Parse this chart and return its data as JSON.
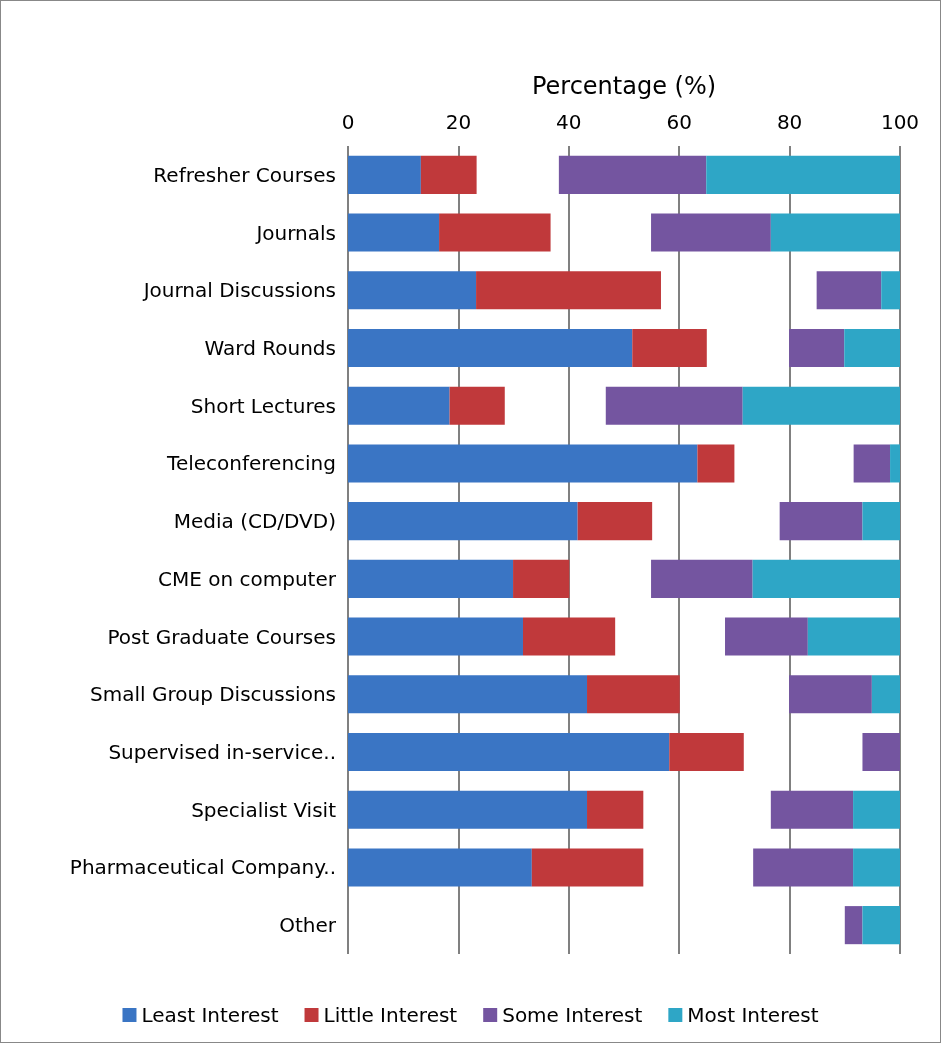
{
  "chart_data": {
    "type": "bar",
    "orientation": "horizontal",
    "xlabel": "Percentage (%)",
    "categories": [
      "Refresher Courses",
      "Journals",
      "Journal Discussions",
      "Ward Rounds",
      "Short Lectures",
      "Teleconferencing",
      "Media (CD/DVD)",
      "CME on computer",
      "Post Graduate Courses",
      "Small Group Discussions",
      "Supervised in-service..",
      "Specialist Visit",
      "Pharmaceutical Company..",
      "Other"
    ],
    "series": [
      {
        "name": "Least Interest",
        "color": "#3a75c4",
        "values": [
          13.2,
          16.5,
          23.2,
          51.5,
          18.4,
          63.3,
          41.6,
          29.9,
          31.7,
          43.3,
          58.2,
          43.3,
          33.3,
          null
        ],
        "base": [
          0,
          0,
          0,
          0,
          0,
          0,
          0,
          0,
          0,
          0,
          0,
          0,
          0,
          null
        ]
      },
      {
        "name": "Little Interest",
        "color": "#c0393b",
        "values": [
          10.1,
          20.2,
          33.5,
          13.5,
          10,
          6.7,
          13.5,
          10.2,
          16.7,
          16.8,
          13.5,
          10.2,
          20.2,
          null
        ],
        "base": [
          13.2,
          16.5,
          23.2,
          51.5,
          18.4,
          63.3,
          41.6,
          29.9,
          31.7,
          43.3,
          58.2,
          43.3,
          33.3,
          null
        ]
      },
      {
        "name": "Some Interest",
        "color": "#7455a0",
        "values": [
          26.7,
          21.7,
          11.7,
          10,
          24.8,
          6.6,
          15,
          18.4,
          15,
          15,
          6.8,
          14.9,
          18.1,
          3.2
        ],
        "base": [
          38.2,
          54.9,
          84.9,
          79.9,
          46.7,
          91.6,
          78.2,
          54.9,
          68.3,
          79.9,
          93.2,
          76.6,
          73.4,
          90
        ]
      },
      {
        "name": "Most Interest",
        "color": "#2ea6c6",
        "values": [
          35.1,
          23.4,
          3.4,
          10.1,
          28.5,
          1.8,
          6.8,
          26.7,
          16.7,
          5.1,
          null,
          8.5,
          8.5,
          6.8
        ],
        "base": [
          64.9,
          76.6,
          96.6,
          89.9,
          71.5,
          98.2,
          93.2,
          73.3,
          83.3,
          94.9,
          null,
          91.5,
          91.5,
          93.2
        ]
      }
    ],
    "xlim": [
      0,
      100
    ],
    "xticks": [
      0,
      20,
      40,
      60,
      80,
      100
    ],
    "grid": "x",
    "legend": "bottom"
  }
}
